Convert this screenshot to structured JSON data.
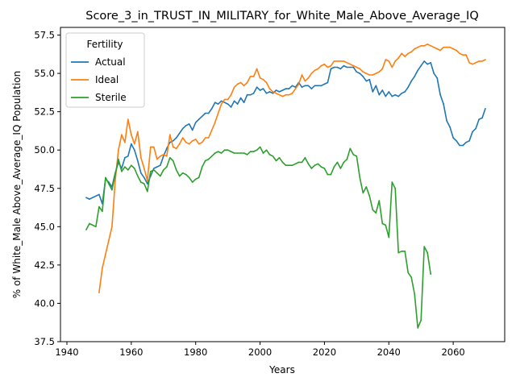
{
  "chart_data": {
    "type": "line",
    "title": "Score_3_in_TRUST_IN_MILITARY_for_White_Male_Above_Average_IQ",
    "xlabel": "Years",
    "ylabel": "% of White_Male Above_Average_IQ Population",
    "xlim": [
      1938,
      2076
    ],
    "ylim": [
      37.5,
      58.0
    ],
    "xticks": [
      1940,
      1960,
      1980,
      2000,
      2020,
      2040,
      2060
    ],
    "yticks": [
      37.5,
      40.0,
      42.5,
      45.0,
      47.5,
      50.0,
      52.5,
      55.0,
      57.5
    ],
    "xtick_labels": [
      "1940",
      "1960",
      "1980",
      "2000",
      "2020",
      "2040",
      "2060"
    ],
    "ytick_labels": [
      "37.5",
      "40.0",
      "42.5",
      "45.0",
      "47.5",
      "50.0",
      "52.5",
      "55.0",
      "57.5"
    ],
    "grid": false,
    "legend": {
      "title": "Fertility",
      "position": "upper-left"
    },
    "series": [
      {
        "name": "Actual",
        "color": "#1f77b4",
        "x": [
          1946,
          1947,
          1948,
          1949,
          1950,
          1951,
          1952,
          1953,
          1954,
          1955,
          1956,
          1957,
          1958,
          1959,
          1960,
          1961,
          1962,
          1963,
          1964,
          1965,
          1966,
          1967,
          1968,
          1969,
          1970,
          1971,
          1972,
          1973,
          1974,
          1975,
          1976,
          1977,
          1978,
          1979,
          1980,
          1981,
          1982,
          1983,
          1984,
          1985,
          1986,
          1987,
          1988,
          1989,
          1990,
          1991,
          1992,
          1993,
          1994,
          1995,
          1996,
          1997,
          1998,
          1999,
          2000,
          2001,
          2002,
          2003,
          2004,
          2005,
          2006,
          2007,
          2008,
          2009,
          2010,
          2011,
          2012,
          2013,
          2014,
          2015,
          2016,
          2017,
          2018,
          2019,
          2020,
          2021,
          2022,
          2023,
          2024,
          2025,
          2026,
          2027,
          2028,
          2029,
          2030,
          2031,
          2032,
          2033,
          2034,
          2035,
          2036,
          2037,
          2038,
          2039,
          2040,
          2041,
          2042,
          2043,
          2044,
          2045,
          2046,
          2047,
          2048,
          2049,
          2050,
          2051,
          2052,
          2053,
          2054,
          2055,
          2056,
          2057,
          2058,
          2059,
          2060,
          2061,
          2062,
          2063,
          2064,
          2065,
          2066,
          2067,
          2068,
          2069,
          2070
        ],
        "values": [
          46.9,
          46.8,
          46.9,
          47.0,
          47.1,
          46.5,
          48.1,
          47.9,
          47.6,
          48.5,
          49.2,
          48.8,
          49.5,
          49.6,
          50.4,
          50.0,
          49.3,
          48.5,
          48.2,
          47.8,
          48.3,
          48.8,
          48.9,
          49.0,
          49.6,
          50.1,
          50.5,
          50.6,
          50.8,
          51.1,
          51.4,
          51.6,
          51.7,
          51.3,
          51.8,
          52.0,
          52.2,
          52.4,
          52.4,
          52.7,
          53.1,
          53.0,
          53.2,
          53.1,
          53.0,
          52.8,
          53.2,
          53.0,
          53.4,
          53.1,
          53.6,
          53.6,
          53.7,
          54.1,
          53.9,
          54.0,
          53.7,
          53.8,
          53.7,
          53.9,
          53.8,
          53.9,
          54.0,
          54.0,
          54.2,
          54.1,
          54.4,
          54.1,
          54.2,
          54.2,
          54.0,
          54.2,
          54.2,
          54.2,
          54.3,
          54.4,
          55.3,
          55.4,
          55.4,
          55.3,
          55.5,
          55.4,
          55.4,
          55.4,
          55.1,
          55.0,
          54.8,
          54.5,
          54.6,
          53.8,
          54.2,
          53.6,
          53.9,
          53.5,
          53.8,
          53.5,
          53.6,
          53.5,
          53.7,
          53.8,
          54.1,
          54.5,
          54.8,
          55.2,
          55.5,
          55.8,
          55.6,
          55.7,
          55.0,
          54.7,
          53.6,
          53.0,
          51.9,
          51.5,
          50.8,
          50.6,
          50.3,
          50.3,
          50.5,
          50.6,
          51.2,
          51.4,
          52.0,
          52.1,
          52.7
        ]
      },
      {
        "name": "Ideal",
        "color": "#ff7f0e",
        "x": [
          1950,
          1951,
          1952,
          1953,
          1954,
          1955,
          1956,
          1957,
          1958,
          1959,
          1960,
          1961,
          1962,
          1963,
          1964,
          1965,
          1966,
          1967,
          1968,
          1969,
          1970,
          1971,
          1972,
          1973,
          1974,
          1975,
          1976,
          1977,
          1978,
          1979,
          1980,
          1981,
          1982,
          1983,
          1984,
          1985,
          1986,
          1987,
          1988,
          1989,
          1990,
          1991,
          1992,
          1993,
          1994,
          1995,
          1996,
          1997,
          1998,
          1999,
          2000,
          2001,
          2002,
          2003,
          2004,
          2005,
          2006,
          2007,
          2008,
          2009,
          2010,
          2011,
          2012,
          2013,
          2014,
          2015,
          2016,
          2017,
          2018,
          2019,
          2020,
          2021,
          2022,
          2023,
          2024,
          2025,
          2026,
          2027,
          2028,
          2029,
          2030,
          2031,
          2032,
          2033,
          2034,
          2035,
          2036,
          2037,
          2038,
          2039,
          2040,
          2041,
          2042,
          2043,
          2044,
          2045,
          2046,
          2047,
          2048,
          2049,
          2050,
          2051,
          2052,
          2053,
          2054,
          2055,
          2056,
          2057,
          2058,
          2059,
          2060,
          2061,
          2062,
          2063,
          2064,
          2065,
          2066,
          2067,
          2068,
          2069,
          2070
        ],
        "values": [
          40.7,
          42.3,
          43.2,
          44.1,
          45.0,
          48.0,
          50.0,
          51.0,
          50.5,
          52.0,
          51.0,
          50.4,
          51.2,
          49.5,
          48.8,
          48.0,
          50.2,
          50.2,
          49.4,
          49.6,
          49.7,
          49.6,
          51.0,
          50.2,
          50.1,
          50.4,
          50.8,
          50.5,
          50.4,
          50.6,
          50.7,
          50.4,
          50.5,
          50.8,
          50.8,
          51.3,
          51.8,
          52.4,
          53.0,
          53.3,
          53.3,
          53.6,
          54.1,
          54.3,
          54.4,
          54.2,
          54.4,
          54.8,
          54.8,
          55.3,
          54.7,
          54.6,
          54.4,
          54.0,
          53.8,
          53.7,
          53.6,
          53.5,
          53.6,
          53.6,
          53.7,
          54.0,
          54.3,
          54.9,
          54.5,
          54.7,
          55.0,
          55.2,
          55.3,
          55.5,
          55.6,
          55.4,
          55.5,
          55.8,
          55.8,
          55.8,
          55.8,
          55.7,
          55.6,
          55.5,
          55.4,
          55.3,
          55.1,
          55.0,
          54.9,
          54.9,
          55.0,
          55.1,
          55.3,
          55.9,
          55.8,
          55.4,
          55.8,
          56.0,
          56.3,
          56.1,
          56.3,
          56.4,
          56.6,
          56.7,
          56.8,
          56.8,
          56.9,
          56.8,
          56.7,
          56.6,
          56.5,
          56.7,
          56.7,
          56.7,
          56.6,
          56.5,
          56.3,
          56.2,
          56.2,
          55.7,
          55.6,
          55.7,
          55.8,
          55.8,
          55.9
        ]
      },
      {
        "name": "Sterile",
        "color": "#2ca02c",
        "x": [
          1946,
          1947,
          1948,
          1949,
          1950,
          1951,
          1952,
          1953,
          1954,
          1955,
          1956,
          1957,
          1958,
          1959,
          1960,
          1961,
          1962,
          1963,
          1964,
          1965,
          1966,
          1967,
          1968,
          1969,
          1970,
          1971,
          1972,
          1973,
          1974,
          1975,
          1976,
          1977,
          1978,
          1979,
          1980,
          1981,
          1982,
          1983,
          1984,
          1985,
          1986,
          1987,
          1988,
          1989,
          1990,
          1991,
          1992,
          1993,
          1994,
          1995,
          1996,
          1997,
          1998,
          1999,
          2000,
          2001,
          2002,
          2003,
          2004,
          2005,
          2006,
          2007,
          2008,
          2009,
          2010,
          2011,
          2012,
          2013,
          2014,
          2015,
          2016,
          2017,
          2018,
          2019,
          2020,
          2021,
          2022,
          2023,
          2024,
          2025,
          2026,
          2027,
          2028,
          2029,
          2030,
          2031,
          2032,
          2033,
          2034,
          2035,
          2036,
          2037,
          2038,
          2039,
          2040,
          2041,
          2042,
          2043,
          2044,
          2045,
          2046,
          2047,
          2048,
          2049,
          2050,
          2051,
          2052,
          2053
        ],
        "values": [
          44.8,
          45.2,
          45.1,
          45.0,
          46.3,
          46.0,
          48.2,
          47.8,
          47.4,
          48.4,
          49.4,
          48.6,
          48.9,
          48.7,
          49.0,
          48.8,
          48.3,
          47.9,
          47.8,
          47.3,
          48.6,
          48.7,
          48.5,
          48.3,
          48.7,
          48.9,
          49.5,
          49.3,
          48.7,
          48.3,
          48.5,
          48.4,
          48.2,
          47.9,
          48.1,
          48.2,
          48.9,
          49.3,
          49.4,
          49.6,
          49.8,
          49.9,
          49.8,
          50.0,
          50.0,
          49.9,
          49.8,
          49.8,
          49.8,
          49.8,
          49.7,
          49.9,
          49.9,
          50.0,
          50.2,
          49.8,
          50.0,
          49.7,
          49.6,
          49.3,
          49.5,
          49.2,
          49.0,
          49.0,
          49.0,
          49.1,
          49.2,
          49.2,
          49.5,
          49.1,
          48.8,
          49.0,
          49.1,
          48.9,
          48.8,
          48.4,
          48.4,
          48.9,
          49.2,
          48.8,
          49.2,
          49.4,
          50.1,
          49.7,
          49.6,
          48.2,
          47.2,
          47.6,
          47.0,
          46.1,
          45.9,
          46.7,
          45.2,
          45.1,
          44.3,
          47.9,
          47.5,
          43.3,
          43.4,
          43.4,
          42.0,
          41.7,
          40.6,
          38.4,
          38.9,
          43.7,
          43.3,
          41.9
        ]
      }
    ]
  }
}
